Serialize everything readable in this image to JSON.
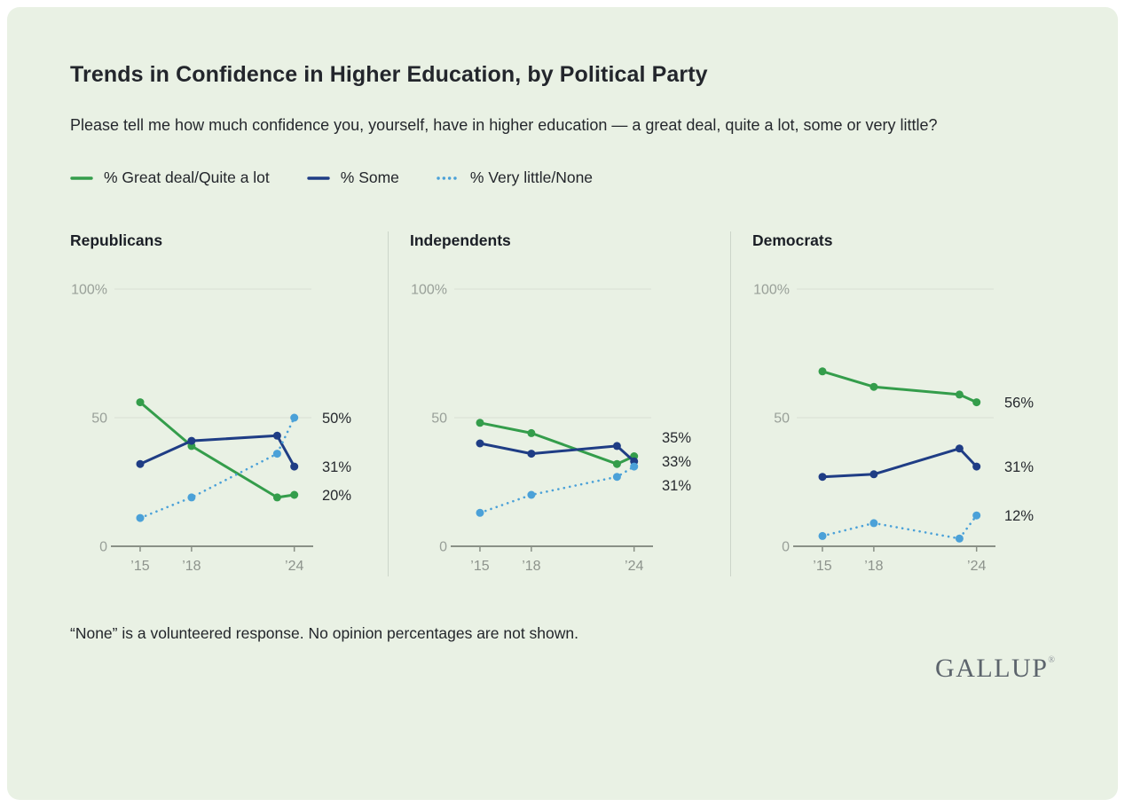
{
  "page": {
    "title": "Trends in Confidence in Higher Education, by Political Party",
    "subtitle": "Please tell me how much confidence you, yourself, have in higher education — a great deal, quite a lot, some or very little?",
    "footnote": "“None” is a volunteered response. No opinion percentages are not shown.",
    "brand": "GALLUP",
    "brand_reg": "®"
  },
  "colors": {
    "background": "#e9f1e4",
    "great_deal_green": "#349d4b",
    "some_navy": "#1f3d85",
    "very_little_blue": "#4ba1d8"
  },
  "legend": [
    {
      "label": "% Great deal/Quite a lot",
      "color": "#349d4b",
      "style": "solid"
    },
    {
      "label": "% Some",
      "color": "#1f3d85",
      "style": "solid"
    },
    {
      "label": "% Very little/None",
      "color": "#4ba1d8",
      "style": "dotted"
    }
  ],
  "chart_data": [
    {
      "type": "line",
      "title": "Republicans",
      "x": [
        2015,
        2018,
        2023,
        2024
      ],
      "xticks": [
        {
          "x": 2015,
          "label": "’15"
        },
        {
          "x": 2018,
          "label": "’18"
        },
        {
          "x": 2024,
          "label": "’24"
        }
      ],
      "ylim": [
        0,
        100
      ],
      "yticks": [
        {
          "value": 100,
          "label": "100%"
        },
        {
          "value": 50,
          "label": "50"
        },
        {
          "value": 0,
          "label": "0"
        }
      ],
      "series": [
        {
          "name": "% Great deal/Quite a lot",
          "values": [
            56,
            39,
            19,
            20
          ],
          "end_label": "20%"
        },
        {
          "name": "% Some",
          "values": [
            32,
            41,
            43,
            31
          ],
          "end_label": "31%"
        },
        {
          "name": "% Very little/None",
          "values": [
            11,
            19,
            36,
            50
          ],
          "end_label": "50%"
        }
      ]
    },
    {
      "type": "line",
      "title": "Independents",
      "x": [
        2015,
        2018,
        2023,
        2024
      ],
      "xticks": [
        {
          "x": 2015,
          "label": "’15"
        },
        {
          "x": 2018,
          "label": "’18"
        },
        {
          "x": 2024,
          "label": "’24"
        }
      ],
      "ylim": [
        0,
        100
      ],
      "yticks": [
        {
          "value": 100,
          "label": "100%"
        },
        {
          "value": 50,
          "label": "50"
        },
        {
          "value": 0,
          "label": "0"
        }
      ],
      "series": [
        {
          "name": "% Great deal/Quite a lot",
          "values": [
            48,
            44,
            32,
            35
          ],
          "end_label": "35%"
        },
        {
          "name": "% Some",
          "values": [
            40,
            36,
            39,
            33
          ],
          "end_label": "33%"
        },
        {
          "name": "% Very little/None",
          "values": [
            13,
            20,
            27,
            31
          ],
          "end_label": "31%"
        }
      ]
    },
    {
      "type": "line",
      "title": "Democrats",
      "x": [
        2015,
        2018,
        2023,
        2024
      ],
      "xticks": [
        {
          "x": 2015,
          "label": "’15"
        },
        {
          "x": 2018,
          "label": "’18"
        },
        {
          "x": 2024,
          "label": "’24"
        }
      ],
      "ylim": [
        0,
        100
      ],
      "yticks": [
        {
          "value": 100,
          "label": "100%"
        },
        {
          "value": 50,
          "label": "50"
        },
        {
          "value": 0,
          "label": "0"
        }
      ],
      "series": [
        {
          "name": "% Great deal/Quite a lot",
          "values": [
            68,
            62,
            59,
            56
          ],
          "end_label": "56%"
        },
        {
          "name": "% Some",
          "values": [
            27,
            28,
            38,
            31
          ],
          "end_label": "31%"
        },
        {
          "name": "% Very little/None",
          "values": [
            4,
            9,
            3,
            12
          ],
          "end_label": "12%"
        }
      ]
    }
  ]
}
